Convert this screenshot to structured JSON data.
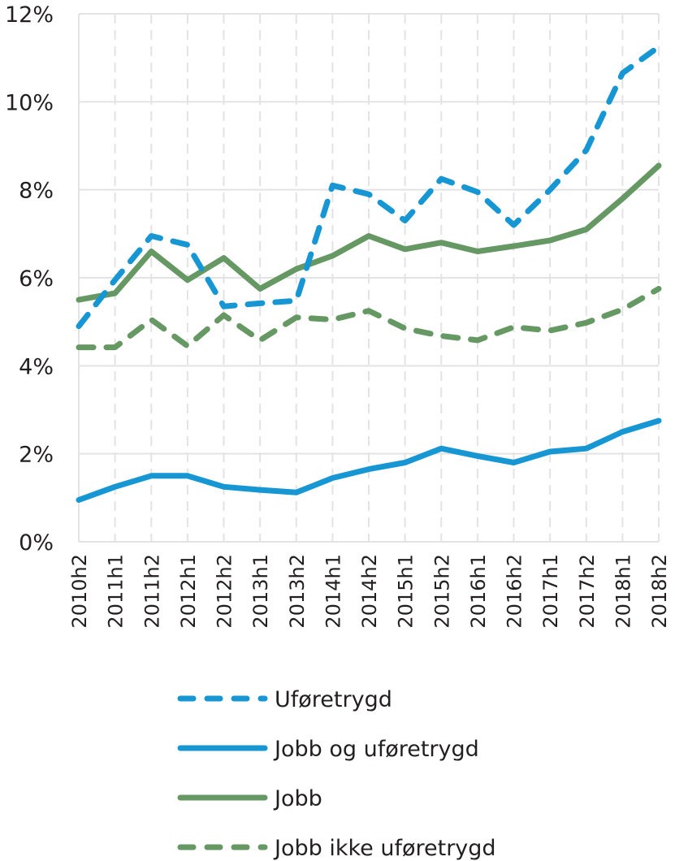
{
  "chart_data": {
    "type": "line",
    "title": "",
    "xlabel": "",
    "ylabel": "",
    "ylim": [
      0,
      12
    ],
    "y_ticks": [
      "0%",
      "2%",
      "4%",
      "6%",
      "8%",
      "10%",
      "12%"
    ],
    "y_tick_values": [
      0,
      2,
      4,
      6,
      8,
      10,
      12
    ],
    "grid": true,
    "legend_position": "bottom",
    "categories": [
      "2010h2",
      "2011h1",
      "2011h2",
      "2012h1",
      "2012h2",
      "2013h1",
      "2013h2",
      "2014h1",
      "2014h2",
      "2015h1",
      "2015h2",
      "2016h1",
      "2016h2",
      "2017h1",
      "2017h2",
      "2018h1",
      "2018h2"
    ],
    "series": [
      {
        "name": "Uføretrygd",
        "color": "#1796d4",
        "dash": "dashed",
        "values": [
          4.9,
          5.95,
          6.95,
          6.75,
          5.35,
          5.42,
          5.48,
          8.1,
          7.9,
          7.3,
          8.25,
          7.95,
          7.2,
          8.0,
          8.9,
          10.65,
          11.25
        ]
      },
      {
        "name": "Jobb og uføretrygd",
        "color": "#1796d4",
        "dash": "solid",
        "values": [
          0.95,
          1.25,
          1.5,
          1.5,
          1.25,
          1.18,
          1.12,
          1.45,
          1.65,
          1.8,
          2.12,
          1.95,
          1.8,
          2.05,
          2.12,
          2.5,
          2.75
        ]
      },
      {
        "name": "Jobb",
        "color": "#659863",
        "dash": "solid",
        "values": [
          5.5,
          5.65,
          6.6,
          5.95,
          6.45,
          5.75,
          6.2,
          6.5,
          6.95,
          6.65,
          6.8,
          6.6,
          6.72,
          6.85,
          7.1,
          7.8,
          8.55
        ]
      },
      {
        "name": "Jobb ikke uføretrygd",
        "color": "#659863",
        "dash": "dashed",
        "values": [
          4.42,
          4.42,
          5.05,
          4.45,
          5.15,
          4.58,
          5.1,
          5.05,
          5.25,
          4.85,
          4.68,
          4.58,
          4.88,
          4.8,
          4.98,
          5.28,
          5.75
        ]
      }
    ]
  }
}
